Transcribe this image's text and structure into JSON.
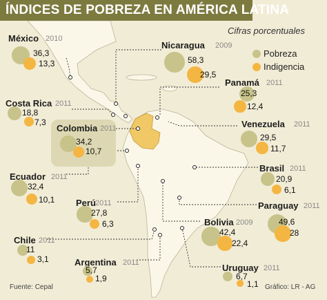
{
  "header": {
    "title": "ÍNDICES DE POBREZA EN AMÉRICA LATINA",
    "subtitle": "Cifras porcentuales"
  },
  "legend": {
    "poverty_label": "Pobreza",
    "indigence_label": "Indigencia"
  },
  "colors": {
    "poverty": "#c8c38a",
    "indigence": "#f4b642",
    "title_bar": "#7d7a3f",
    "map_highlight": "#f0c866",
    "land": "#fbf7e8"
  },
  "chart_data": {
    "type": "bubble",
    "title": "ÍNDICES DE POBREZA EN AMÉRICA LATINA",
    "subtitle": "Cifras porcentuales",
    "series": [
      {
        "name": "Pobreza",
        "key": "poverty"
      },
      {
        "name": "Indigencia",
        "key": "indigence"
      }
    ],
    "countries": [
      {
        "name": "México",
        "year": "2010",
        "poverty": 36.3,
        "poverty_label": "36,3",
        "indigence": 13.3,
        "indigence_label": "13,3"
      },
      {
        "name": "Nicaragua",
        "year": "2009",
        "poverty": 58.3,
        "poverty_label": "58,3",
        "indigence": 29.5,
        "indigence_label": "29,5"
      },
      {
        "name": "Panamá",
        "year": "2011",
        "poverty": 25.3,
        "poverty_label": "25,3",
        "indigence": 12.4,
        "indigence_label": "12,4"
      },
      {
        "name": "Costa Rica",
        "year": "2011",
        "poverty": 18.8,
        "poverty_label": "18,8",
        "indigence": 7.3,
        "indigence_label": "7,3"
      },
      {
        "name": "Colombia",
        "year": "2011",
        "poverty": 34.2,
        "poverty_label": "34,2",
        "indigence": 10.7,
        "indigence_label": "10,7"
      },
      {
        "name": "Venezuela",
        "year": "2011",
        "poverty": 29.5,
        "poverty_label": "29,5",
        "indigence": 11.7,
        "indigence_label": "11,7"
      },
      {
        "name": "Ecuador",
        "year": "2011",
        "poverty": 32.4,
        "poverty_label": "32,4",
        "indigence": 10.1,
        "indigence_label": "10,1"
      },
      {
        "name": "Brasil",
        "year": "2011",
        "poverty": 20.9,
        "poverty_label": "20,9",
        "indigence": 6.1,
        "indigence_label": "6,1"
      },
      {
        "name": "Perú",
        "year": "2011",
        "poverty": 27.8,
        "poverty_label": "27,8",
        "indigence": 6.3,
        "indigence_label": "6,3"
      },
      {
        "name": "Paraguay",
        "year": "2011",
        "poverty": 49.6,
        "poverty_label": "49,6",
        "indigence": 28,
        "indigence_label": "28"
      },
      {
        "name": "Bolivia",
        "year": "2009",
        "poverty": 42.4,
        "poverty_label": "42,4",
        "indigence": 22.4,
        "indigence_label": "22,4"
      },
      {
        "name": "Chile",
        "year": "2011",
        "poverty": 11,
        "poverty_label": "11",
        "indigence": 3.1,
        "indigence_label": "3,1"
      },
      {
        "name": "Argentina",
        "year": "2011",
        "poverty": 5.7,
        "poverty_label": "5,7",
        "indigence": 1.9,
        "indigence_label": "1,9"
      },
      {
        "name": "Uruguay",
        "year": "2011",
        "poverty": 6.7,
        "poverty_label": "6,7",
        "indigence": 1.1,
        "indigence_label": "1,1"
      }
    ]
  },
  "footer": {
    "source": "Fuente: Cepal",
    "credit": "Gráfico: LR - AG"
  }
}
